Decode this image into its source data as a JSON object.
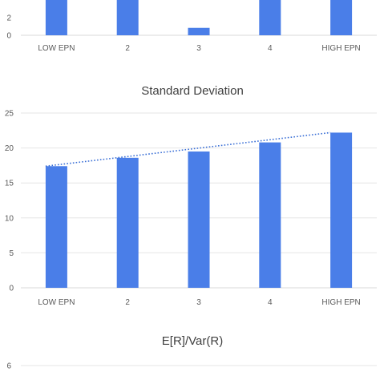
{
  "chart_data": [
    {
      "type": "bar",
      "title": "",
      "categories": [
        "LOW EPN",
        "2",
        "3",
        "4",
        "HIGH EPN"
      ],
      "y_ticks": [
        "2",
        "0"
      ],
      "ylim": [
        0,
        3.5
      ],
      "series": [
        {
          "name": "",
          "values": [
            3.5,
            3.5,
            0.6,
            3.5,
            3.5
          ],
          "color": "#4a7ee8"
        }
      ],
      "note": "upper panel cropped at top edge; taller bars extend beyond visible area"
    },
    {
      "type": "bar",
      "title": "Standard Deviation",
      "categories": [
        "LOW EPN",
        "2",
        "3",
        "4",
        "HIGH EPN"
      ],
      "y_ticks": [
        "25",
        "20",
        "15",
        "10",
        "5",
        "0"
      ],
      "ylim": [
        0,
        25
      ],
      "series": [
        {
          "name": "",
          "values": [
            17.4,
            18.6,
            19.5,
            20.8,
            22.2
          ],
          "color": "#4a7ee8"
        }
      ],
      "trendline": {
        "style": "dotted",
        "color": "#3a6fd6",
        "from": 17.4,
        "to": 22.2
      },
      "grid": true
    },
    {
      "type": "bar",
      "title": "E[R]/Var(R)",
      "categories": [],
      "y_ticks": [
        "6"
      ],
      "series": [],
      "note": "lower panel cropped at bottom edge"
    }
  ]
}
